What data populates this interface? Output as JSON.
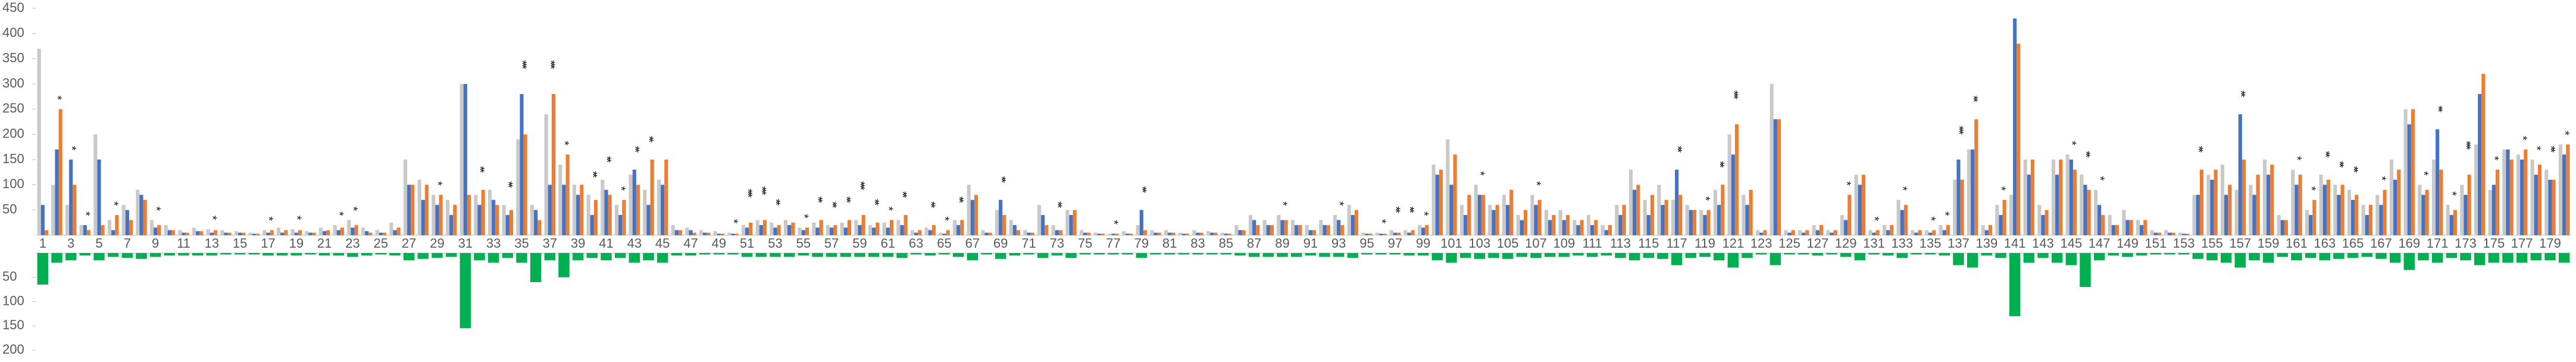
{
  "chart_data": [
    {
      "type": "bar",
      "categories": [
        "1",
        null,
        "3",
        null,
        "5",
        null,
        "7",
        null,
        "9",
        null,
        "11",
        null,
        "13",
        null,
        "15",
        null,
        "17",
        null,
        "19",
        null,
        "21",
        null,
        "23",
        null,
        "25",
        null,
        "27",
        null,
        "29",
        null,
        "31",
        null,
        "33",
        null,
        "35",
        null,
        "37",
        null,
        "39",
        null,
        "41",
        null,
        "43",
        null,
        "45",
        null,
        "47",
        null,
        "49",
        null,
        "51",
        null,
        "53",
        null,
        "55",
        null,
        "57",
        null,
        "59",
        null,
        "61",
        null,
        "63",
        null,
        "65",
        null,
        "67",
        null,
        "69",
        null,
        "71",
        null,
        "73",
        null,
        "75",
        null,
        "77",
        null,
        "79",
        null,
        "81",
        null,
        "83",
        null,
        "85",
        null,
        "87",
        null,
        "89",
        null,
        "91",
        null,
        "93",
        null,
        "95",
        null,
        "97",
        null,
        "99",
        null,
        "101",
        null,
        "103",
        null,
        "105",
        null,
        "107",
        null,
        "109",
        null,
        "111",
        null,
        "113",
        null,
        "115",
        null,
        "117",
        null,
        "119",
        null,
        "121",
        null,
        "123",
        null,
        "125",
        null,
        "127",
        null,
        "129",
        null,
        "131",
        null,
        "133",
        null,
        "135",
        null,
        "137",
        null,
        "139",
        null,
        "141",
        null,
        "143",
        null,
        "145",
        null,
        "147",
        null,
        "149",
        null,
        "151",
        null,
        "153",
        null,
        "155",
        null,
        "157",
        null,
        "159",
        null,
        "161",
        null,
        "163",
        null,
        "165",
        null,
        "167",
        null,
        "169",
        null,
        "171",
        null,
        "173",
        null,
        "175",
        null,
        "177",
        null,
        "179",
        null
      ],
      "series": [
        {
          "color": "#c9c9c9",
          "values": [
            370,
            100,
            60,
            20,
            200,
            30,
            60,
            90,
            30,
            20,
            10,
            15,
            12,
            10,
            8,
            5,
            10,
            15,
            12,
            8,
            15,
            20,
            30,
            15,
            10,
            25,
            150,
            110,
            80,
            70,
            300,
            80,
            90,
            60,
            190,
            60,
            240,
            140,
            100,
            80,
            110,
            60,
            120,
            90,
            110,
            20,
            15,
            10,
            8,
            5,
            20,
            30,
            25,
            30,
            15,
            25,
            20,
            25,
            30,
            20,
            25,
            30,
            10,
            15,
            5,
            30,
            100,
            10,
            50,
            30,
            10,
            60,
            20,
            50,
            10,
            5,
            3,
            8,
            20,
            10,
            10,
            5,
            10,
            8,
            5,
            20,
            40,
            30,
            40,
            30,
            20,
            30,
            40,
            60,
            5,
            5,
            10,
            10,
            20,
            140,
            190,
            60,
            100,
            60,
            80,
            40,
            80,
            50,
            50,
            30,
            40,
            20,
            60,
            130,
            70,
            100,
            70,
            60,
            50,
            90,
            200,
            80,
            10,
            300,
            10,
            10,
            20,
            10,
            40,
            120,
            10,
            20,
            70,
            10,
            10,
            20,
            110,
            170,
            20,
            60,
            80,
            150,
            60,
            150,
            160,
            120,
            90,
            40,
            50,
            30,
            10,
            10,
            5,
            80,
            120,
            140,
            90,
            100,
            150,
            40,
            130,
            50,
            120,
            100,
            90,
            60,
            80,
            150,
            250,
            100,
            150,
            60,
            100,
            180,
            90,
            170,
            160,
            150,
            130,
            180
          ]
        },
        {
          "color": "#4472c4",
          "values": [
            60,
            170,
            150,
            20,
            150,
            10,
            50,
            80,
            15,
            10,
            5,
            8,
            5,
            5,
            5,
            3,
            5,
            5,
            5,
            5,
            8,
            10,
            15,
            8,
            5,
            10,
            100,
            70,
            60,
            40,
            300,
            60,
            70,
            40,
            280,
            50,
            100,
            100,
            80,
            40,
            90,
            40,
            130,
            60,
            100,
            10,
            10,
            5,
            3,
            3,
            15,
            20,
            15,
            20,
            10,
            15,
            15,
            15,
            20,
            15,
            15,
            20,
            5,
            10,
            3,
            20,
            70,
            5,
            70,
            20,
            5,
            40,
            10,
            40,
            5,
            3,
            3,
            3,
            50,
            5,
            5,
            3,
            5,
            5,
            3,
            10,
            30,
            20,
            30,
            20,
            10,
            20,
            30,
            40,
            3,
            3,
            5,
            5,
            15,
            120,
            100,
            40,
            80,
            50,
            60,
            30,
            60,
            30,
            30,
            20,
            20,
            10,
            40,
            90,
            40,
            60,
            130,
            50,
            40,
            60,
            160,
            60,
            5,
            230,
            5,
            5,
            10,
            5,
            30,
            100,
            5,
            10,
            50,
            5,
            5,
            10,
            150,
            170,
            10,
            40,
            430,
            120,
            40,
            120,
            150,
            100,
            60,
            20,
            30,
            20,
            5,
            5,
            3,
            80,
            110,
            80,
            240,
            80,
            120,
            30,
            100,
            40,
            100,
            80,
            70,
            40,
            60,
            110,
            220,
            80,
            210,
            40,
            80,
            280,
            100,
            170,
            150,
            120,
            110,
            160
          ]
        },
        {
          "color": "#ed7d31",
          "values": [
            10,
            250,
            100,
            10,
            20,
            40,
            30,
            70,
            20,
            10,
            5,
            8,
            10,
            5,
            5,
            3,
            10,
            10,
            10,
            5,
            10,
            15,
            20,
            5,
            5,
            15,
            100,
            100,
            80,
            60,
            80,
            90,
            60,
            50,
            200,
            30,
            280,
            160,
            100,
            70,
            80,
            70,
            100,
            150,
            150,
            10,
            5,
            5,
            3,
            3,
            25,
            30,
            20,
            25,
            15,
            30,
            20,
            30,
            40,
            25,
            30,
            40,
            10,
            20,
            10,
            30,
            80,
            5,
            40,
            10,
            5,
            20,
            10,
            50,
            5,
            3,
            3,
            3,
            10,
            5,
            5,
            3,
            5,
            5,
            3,
            10,
            20,
            20,
            30,
            20,
            10,
            20,
            20,
            50,
            3,
            3,
            5,
            10,
            20,
            130,
            160,
            80,
            80,
            60,
            90,
            50,
            70,
            40,
            40,
            30,
            30,
            20,
            60,
            100,
            80,
            70,
            80,
            50,
            50,
            100,
            220,
            90,
            10,
            230,
            10,
            10,
            20,
            10,
            80,
            120,
            10,
            20,
            60,
            10,
            10,
            20,
            110,
            230,
            20,
            70,
            380,
            150,
            50,
            150,
            130,
            90,
            40,
            20,
            30,
            30,
            5,
            5,
            3,
            130,
            130,
            100,
            150,
            120,
            140,
            30,
            120,
            70,
            110,
            100,
            80,
            60,
            90,
            130,
            250,
            90,
            130,
            50,
            120,
            320,
            130,
            150,
            170,
            140,
            110,
            180
          ]
        }
      ],
      "annotations": [
        null,
        "*",
        "*",
        "*",
        null,
        "*",
        null,
        null,
        "*",
        null,
        null,
        null,
        "*",
        null,
        null,
        null,
        "*",
        null,
        "*",
        null,
        null,
        "*",
        "*",
        null,
        null,
        null,
        null,
        null,
        "*",
        null,
        null,
        "**",
        null,
        "**",
        "***",
        null,
        "***",
        "*",
        null,
        "**",
        "**",
        "*",
        "**",
        "**",
        null,
        null,
        null,
        null,
        null,
        "*",
        "***",
        "***",
        "**",
        null,
        "*",
        "**",
        "**",
        "**",
        "***",
        "**",
        "*",
        "**",
        null,
        "**",
        "*",
        "**",
        null,
        null,
        "**",
        null,
        null,
        null,
        "**",
        null,
        null,
        null,
        "*",
        null,
        "**",
        null,
        null,
        null,
        null,
        null,
        null,
        null,
        null,
        null,
        "*",
        null,
        null,
        null,
        "*",
        null,
        null,
        "*",
        "**",
        "**",
        "*",
        null,
        null,
        null,
        "*",
        null,
        null,
        null,
        "*",
        null,
        null,
        null,
        null,
        null,
        null,
        null,
        null,
        null,
        "**",
        null,
        "*",
        "**",
        "***",
        null,
        null,
        null,
        null,
        null,
        null,
        null,
        "*",
        null,
        "*",
        null,
        "*",
        null,
        "*",
        "*",
        "***",
        "**",
        null,
        "*",
        "***",
        null,
        null,
        null,
        "*",
        "**",
        "*",
        null,
        null,
        null,
        null,
        null,
        null,
        "**",
        null,
        null,
        "**",
        null,
        null,
        null,
        "*",
        "*",
        "**",
        "**",
        "**",
        null,
        "*",
        null,
        null,
        "*",
        "**",
        "*",
        "***",
        null,
        "*",
        null,
        "*",
        "*",
        "**",
        "*"
      ],
      "ylim": [
        0,
        450
      ],
      "yticks": [
        50,
        100,
        150,
        200,
        250,
        300,
        350,
        400,
        450
      ]
    },
    {
      "type": "bar",
      "inverted": true,
      "series": [
        {
          "color": "#00b050",
          "values": [
            65,
            20,
            15,
            5,
            15,
            8,
            10,
            12,
            8,
            5,
            5,
            5,
            5,
            3,
            3,
            3,
            5,
            5,
            5,
            3,
            5,
            5,
            8,
            5,
            3,
            5,
            15,
            12,
            10,
            8,
            155,
            15,
            20,
            10,
            20,
            60,
            15,
            50,
            15,
            10,
            15,
            10,
            20,
            15,
            20,
            5,
            5,
            3,
            3,
            3,
            8,
            8,
            8,
            8,
            5,
            8,
            8,
            8,
            8,
            8,
            8,
            10,
            3,
            5,
            3,
            8,
            15,
            3,
            12,
            5,
            3,
            10,
            5,
            10,
            3,
            3,
            3,
            3,
            10,
            3,
            3,
            3,
            3,
            3,
            3,
            5,
            8,
            8,
            8,
            8,
            5,
            8,
            8,
            10,
            3,
            3,
            3,
            5,
            5,
            15,
            20,
            10,
            12,
            10,
            12,
            8,
            10,
            8,
            8,
            5,
            8,
            5,
            10,
            15,
            10,
            12,
            25,
            10,
            8,
            15,
            30,
            10,
            3,
            25,
            3,
            3,
            5,
            3,
            8,
            15,
            3,
            5,
            10,
            3,
            3,
            5,
            25,
            30,
            5,
            10,
            130,
            20,
            10,
            20,
            25,
            70,
            15,
            5,
            8,
            5,
            3,
            3,
            3,
            12,
            15,
            20,
            30,
            15,
            20,
            8,
            15,
            10,
            15,
            12,
            10,
            8,
            12,
            20,
            35,
            15,
            20,
            10,
            15,
            25,
            20,
            20,
            20,
            15,
            15,
            20
          ]
        }
      ],
      "ylim": [
        0,
        200
      ],
      "yticks": [
        50,
        100,
        150,
        200
      ]
    }
  ]
}
